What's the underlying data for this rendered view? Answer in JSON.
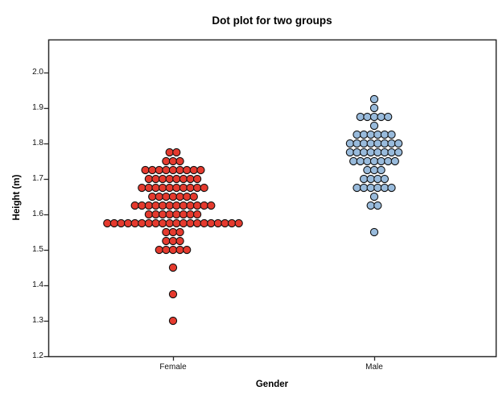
{
  "chart_data": {
    "type": "scatter",
    "subtype": "stacked-dot-plot",
    "title": "Dot plot for two groups",
    "xlabel": "Gender",
    "ylabel": "Height (m)",
    "ylim": [
      1.2,
      2.09
    ],
    "grid": false,
    "legend": "none",
    "y_ticks": [
      "2.0",
      "1.9",
      "1.8",
      "1.7",
      "1.6",
      "1.5",
      "1.4",
      "1.3",
      "1.2"
    ],
    "categories": [
      "Female",
      "Male"
    ],
    "series": [
      {
        "name": "Female",
        "color": "#e53a2e",
        "bins": [
          {
            "height": 1.775,
            "count": 2
          },
          {
            "height": 1.75,
            "count": 3
          },
          {
            "height": 1.725,
            "count": 9
          },
          {
            "height": 1.7,
            "count": 8
          },
          {
            "height": 1.675,
            "count": 10
          },
          {
            "height": 1.65,
            "count": 7
          },
          {
            "height": 1.625,
            "count": 12
          },
          {
            "height": 1.6,
            "count": 8
          },
          {
            "height": 1.575,
            "count": 20
          },
          {
            "height": 1.55,
            "count": 3
          },
          {
            "height": 1.525,
            "count": 3
          },
          {
            "height": 1.5,
            "count": 5
          },
          {
            "height": 1.45,
            "count": 1
          },
          {
            "height": 1.375,
            "count": 1
          },
          {
            "height": 1.3,
            "count": 1
          }
        ]
      },
      {
        "name": "Male",
        "color": "#99bbdc",
        "bins": [
          {
            "height": 1.925,
            "count": 1
          },
          {
            "height": 1.9,
            "count": 1
          },
          {
            "height": 1.875,
            "count": 5
          },
          {
            "height": 1.85,
            "count": 1
          },
          {
            "height": 1.825,
            "count": 6
          },
          {
            "height": 1.8,
            "count": 8
          },
          {
            "height": 1.775,
            "count": 8
          },
          {
            "height": 1.75,
            "count": 7
          },
          {
            "height": 1.725,
            "count": 3
          },
          {
            "height": 1.7,
            "count": 4
          },
          {
            "height": 1.675,
            "count": 6
          },
          {
            "height": 1.65,
            "count": 1
          },
          {
            "height": 1.625,
            "count": 2
          },
          {
            "height": 1.55,
            "count": 1
          }
        ]
      }
    ],
    "colors": {
      "female_dot_fill": "#e53a2e",
      "male_dot_fill": "#99bbdc",
      "dot_outline": "#111111",
      "frame": "#2a2a2a",
      "background": "#ffffff"
    }
  }
}
